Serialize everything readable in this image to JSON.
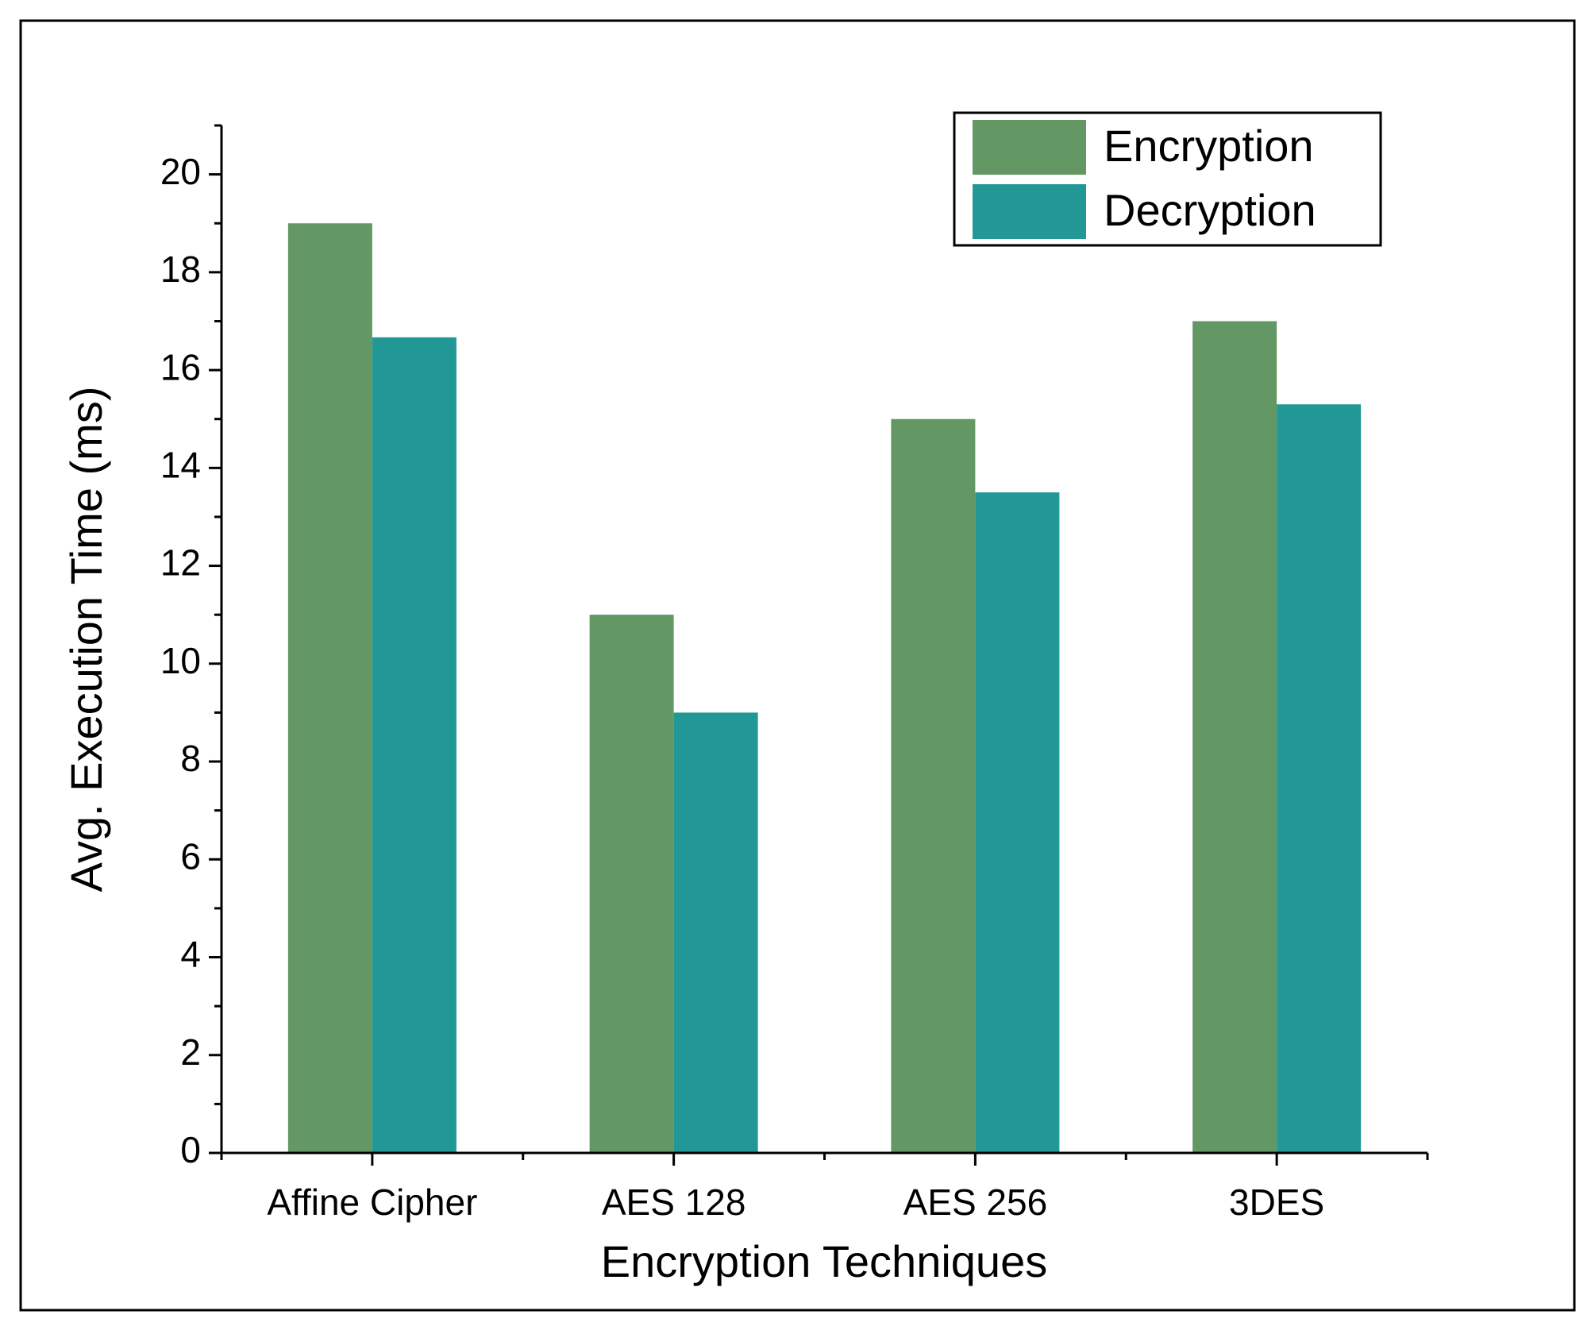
{
  "chart_data": {
    "type": "bar",
    "x_label": "Encryption Techniques",
    "y_label": "Avg. Execution Time (ms)",
    "categories": [
      "Affine Cipher",
      "AES 128",
      "AES 256",
      "3DES"
    ],
    "series": [
      {
        "name": "Encryption",
        "color": "#639764",
        "values": [
          19,
          11,
          15,
          17
        ]
      },
      {
        "name": "Decryption",
        "color": "#219896",
        "values": [
          16.67,
          9,
          13.5,
          15.3
        ]
      }
    ],
    "ylim": [
      0,
      21
    ],
    "yticks": [
      0,
      2,
      4,
      6,
      8,
      10,
      12,
      14,
      16,
      18,
      20
    ],
    "grid": false,
    "legend": "upper right"
  }
}
